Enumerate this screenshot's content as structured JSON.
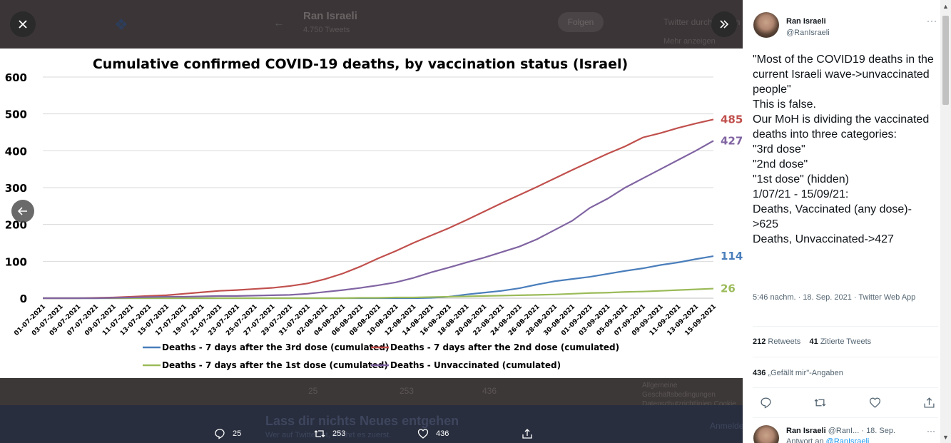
{
  "background_page": {
    "name": "Ran Israeli",
    "tweet_count": "4.750 Tweets",
    "follow_label": "Folgen",
    "search_placeholder": "Twitter durchsuchen",
    "more_label": "Mehr anzeigen",
    "bar_reply": "25",
    "bar_retweet": "253",
    "bar_like": "436",
    "banner_title": "Lass dir nichts Neues entgehen",
    "banner_sub": "Wer auf Twitter ist, erfährt es zuerst.",
    "banner_login": "Anmelden",
    "side_text": "Allgemeine Geschäftsbedingungen Datenschutzrichtlinien Cookie"
  },
  "lightbox": {
    "close_icon": "close-icon",
    "expand_icon": "expand-icon",
    "prev_icon": "arrow-left-icon",
    "reply_count": "25",
    "retweet_count": "253",
    "like_count": "436"
  },
  "chart_data": {
    "type": "line",
    "title": "Cumulative confirmed COVID-19 deaths, by vaccination status (Israel)",
    "xlabel": "",
    "ylabel": "",
    "ylim": [
      0,
      600
    ],
    "yticks": [
      0,
      100,
      200,
      300,
      400,
      500,
      600
    ],
    "grid": true,
    "legend_position": "bottom",
    "x_tick_labels": [
      "01-07-2021",
      "03-07-2021",
      "05-07-2021",
      "07-07-2021",
      "09-07-2021",
      "11-07-2021",
      "13-07-2021",
      "15-07-2021",
      "17-07-2021",
      "19-07-2021",
      "21-07-2021",
      "23-07-2021",
      "25-07-2021",
      "27-07-2021",
      "29-07-2021",
      "31-07-2021",
      "02-08-2021",
      "04-08-2021",
      "06-08-2021",
      "08-08-2021",
      "10-08-2021",
      "12-08-2021",
      "14-08-2021",
      "16-08-2021",
      "18-08-2021",
      "20-08-2021",
      "22-08-2021",
      "24-08-2021",
      "26-08-2021",
      "28-08-2021",
      "30-08-2021",
      "01-09-2021",
      "03-09-2021",
      "05-09-2021",
      "07-09-2021",
      "09-09-2021",
      "11-09-2021",
      "13-09-2021",
      "15-09-2021"
    ],
    "series": [
      {
        "name": "Deaths - 7 days after the 3rd dose (cumulated)",
        "color": "#4a7ebb",
        "end_label": "114",
        "values": [
          0,
          0,
          0,
          0,
          0,
          0,
          0,
          0,
          0,
          0,
          0,
          0,
          0,
          0,
          0,
          0,
          0,
          0,
          0,
          0,
          0,
          0,
          1,
          4,
          10,
          15,
          20,
          27,
          37,
          46,
          52,
          58,
          66,
          74,
          81,
          90,
          97,
          106,
          114
        ]
      },
      {
        "name": "Deaths - 7 days after the 2nd dose (cumulated)",
        "color": "#c0504d",
        "end_label": "485",
        "values": [
          0,
          0,
          0,
          1,
          2,
          4,
          6,
          8,
          12,
          16,
          20,
          22,
          25,
          28,
          33,
          40,
          52,
          67,
          86,
          108,
          128,
          150,
          170,
          190,
          212,
          235,
          258,
          280,
          302,
          325,
          348,
          370,
          392,
          412,
          436,
          448,
          462,
          474,
          485
        ]
      },
      {
        "name": "Deaths - 7 days after the 1st dose (cumulated)",
        "color": "#9bbb59",
        "end_label": "26",
        "values": [
          0,
          0,
          0,
          0,
          0,
          0,
          0,
          0,
          0,
          0,
          0,
          0,
          0,
          0,
          0,
          0,
          0,
          0,
          1,
          1,
          2,
          2,
          3,
          4,
          5,
          6,
          7,
          8,
          9,
          10,
          12,
          14,
          15,
          17,
          18,
          20,
          22,
          24,
          26
        ]
      },
      {
        "name": "Deaths - Unvaccinated (cumulated)",
        "color": "#8064a2",
        "end_label": "427",
        "values": [
          0,
          0,
          0,
          0,
          1,
          2,
          3,
          4,
          4,
          5,
          6,
          6,
          7,
          8,
          9,
          12,
          17,
          22,
          28,
          35,
          43,
          55,
          70,
          83,
          97,
          110,
          125,
          140,
          160,
          185,
          210,
          245,
          270,
          300,
          325,
          350,
          375,
          400,
          427
        ]
      }
    ]
  },
  "tweet": {
    "author_name": "Ran Israeli",
    "author_handle": "@RanIsraeli",
    "text": "\"Most of the COVID19 deaths in the current Israeli wave->unvaccinated people\"\nThis is false.\nOur MoH is dividing the vaccinated deaths into three categories:\n\"3rd dose\"\n\"2nd dose\"\n\"1st dose\" (hidden)\n1/07/21 - 15/09/21:\nDeaths, Vaccinated (any dose)->625\nDeaths, Unvaccinated->427",
    "timestamp": "5:46 nachm. · 18. Sep. 2021 · Twitter Web App",
    "retweets_count": "212",
    "retweets_label": "Retweets",
    "quotes_count": "41",
    "quotes_label": "Zitierte Tweets",
    "likes_count": "436",
    "likes_label": "„Gefällt mir\"-Angaben"
  },
  "reply": {
    "author_name": "Ran Israeli",
    "author_handle": "@RanI...",
    "date": "· 18. Sep.",
    "reply_to_label": "Antwort an",
    "reply_to_handle": "@RanIsraeli"
  }
}
